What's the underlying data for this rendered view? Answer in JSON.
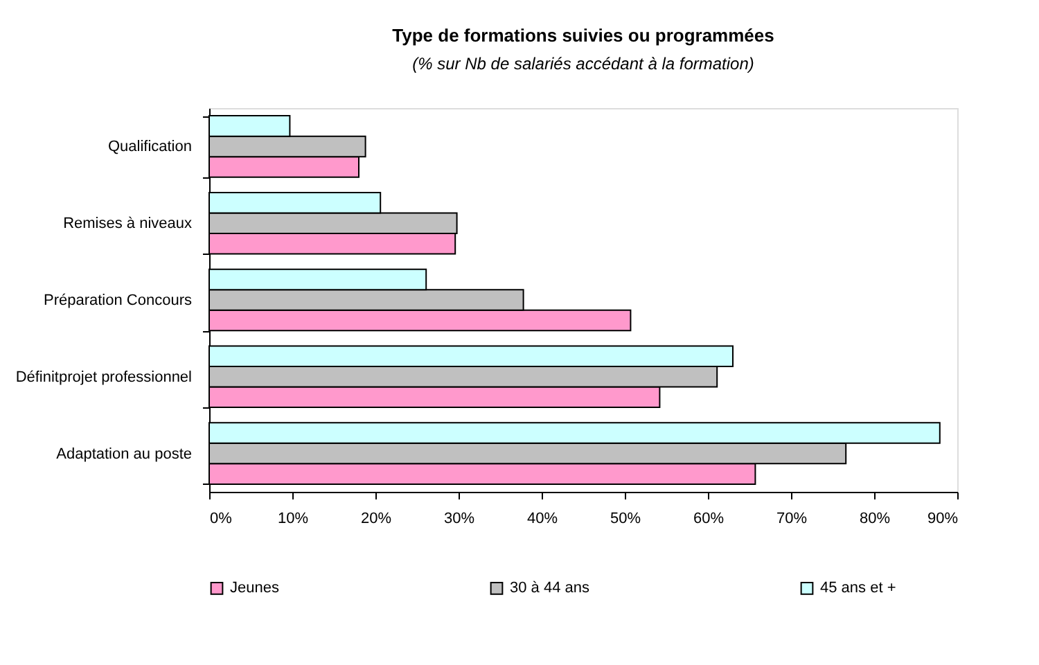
{
  "chart_data": {
    "type": "bar",
    "orientation": "horizontal",
    "title": "Type de formations suivies ou programmées",
    "subtitle": "(% sur Nb de salariés accédant à la formation)",
    "categories": [
      "Qualification",
      "Remises à niveaux",
      "Préparation Concours",
      "Définitprojet professionnel",
      "Adaptation au poste"
    ],
    "series": [
      {
        "name": "Jeunes",
        "color": "#ff99cc",
        "values": [
          18.0,
          29.6,
          50.7,
          54.2,
          65.7
        ]
      },
      {
        "name": "30 à 44 ans",
        "color": "#c0c0c0",
        "values": [
          18.8,
          29.8,
          37.8,
          61.1,
          76.6
        ]
      },
      {
        "name": "45 ans et +",
        "color": "#ccffff",
        "values": [
          9.7,
          20.6,
          26.1,
          63.0,
          87.9
        ]
      }
    ],
    "xlim": [
      0,
      90
    ],
    "xticks": [
      {
        "value": 0,
        "label": "0%"
      },
      {
        "value": 10,
        "label": "10%"
      },
      {
        "value": 20,
        "label": "20%"
      },
      {
        "value": 30,
        "label": "30%"
      },
      {
        "value": 40,
        "label": "40%"
      },
      {
        "value": 50,
        "label": "50%"
      },
      {
        "value": 60,
        "label": "60%"
      },
      {
        "value": 70,
        "label": "70%"
      },
      {
        "value": 80,
        "label": "80%"
      },
      {
        "value": 90,
        "label": "90%"
      }
    ],
    "grid": false,
    "legend": "bottom"
  }
}
